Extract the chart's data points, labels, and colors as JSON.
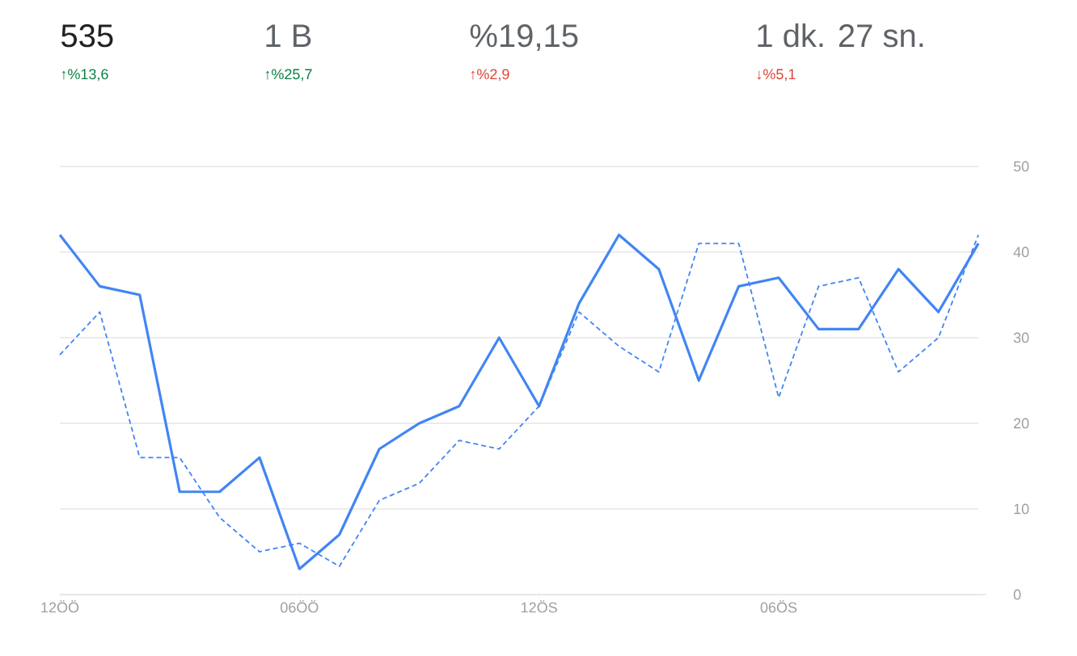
{
  "chart_data": {
    "type": "line",
    "annotations": [
      "535",
      "1 B",
      "%19,15",
      "1 dk. 27 sn.",
      "↑%13,6",
      "↑%25,7",
      "↑%2,9",
      "↓%5,1"
    ],
    "categories": [
      "12ÖÖ",
      null,
      null,
      null,
      null,
      null,
      "06ÖÖ",
      null,
      null,
      null,
      null,
      null,
      "12ÖS",
      null,
      null,
      null,
      null,
      null,
      "06ÖS",
      null,
      null,
      null,
      null,
      null
    ],
    "ylim": [
      0,
      50
    ],
    "yticks": [
      0,
      10,
      20,
      30,
      40,
      50
    ],
    "grid": "y",
    "series": [
      {
        "color": "#4285f4",
        "line_style": "solid",
        "values": [
          42,
          36,
          35,
          12,
          12,
          16,
          3,
          7,
          17,
          20,
          22,
          30,
          22,
          34,
          42,
          38,
          25,
          36,
          37,
          31,
          31,
          38,
          33,
          41
        ]
      },
      {
        "color": "#4285f4",
        "line_style": "dashed",
        "values": [
          28,
          33,
          16,
          16,
          9,
          5,
          6,
          3.3,
          11,
          13,
          18,
          17,
          22,
          33,
          29,
          26,
          41,
          41,
          23,
          36,
          37,
          26,
          30,
          42
        ]
      }
    ]
  }
}
